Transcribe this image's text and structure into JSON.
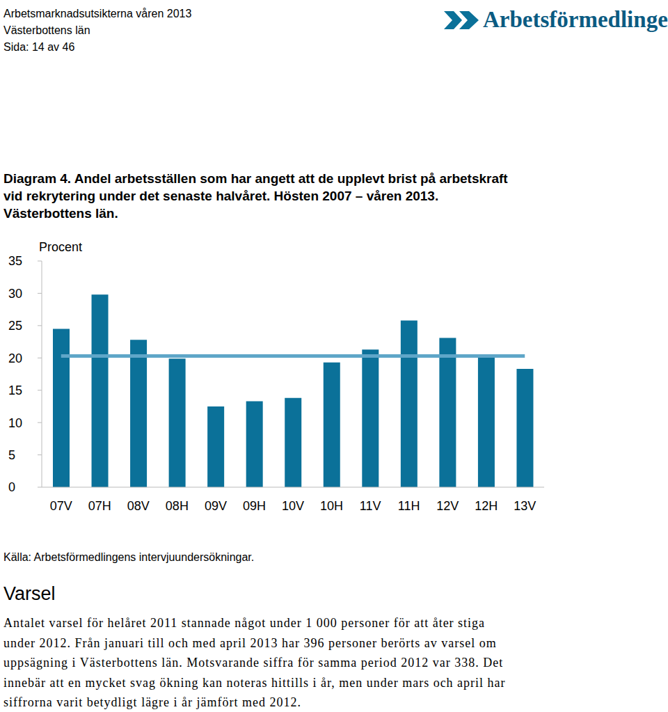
{
  "header": {
    "lines": [
      "Arbetsmarknadsutsikterna våren 2013",
      "Västerbottens län",
      "Sida: 14 av 46"
    ],
    "logo": "Arbetsförmedlingen"
  },
  "caption": [
    "Diagram 4. Andel arbetsställen som har angett att de upplevt brist på arbetskraft",
    "vid rekrytering under det senaste halvåret. Hösten 2007 – våren 2013.",
    "Västerbottens län."
  ],
  "chart_data": {
    "type": "bar",
    "y_label": "Procent",
    "categories": [
      "07V",
      "07H",
      "08V",
      "08H",
      "09V",
      "09H",
      "10V",
      "10H",
      "11V",
      "11H",
      "12V",
      "12H",
      "13V"
    ],
    "values": [
      24.5,
      29.8,
      22.8,
      19.9,
      12.5,
      13.3,
      13.8,
      19.3,
      21.3,
      25.8,
      23.1,
      20.3,
      18.3
    ],
    "color": "#0b7199",
    "reference_line": 20.3,
    "reference_color": "#5fa6c8",
    "ylim": [
      0,
      35
    ],
    "yticks": [
      0,
      5,
      10,
      15,
      20,
      25,
      30,
      35
    ],
    "grid": false
  },
  "source": "Källa: Arbetsförmedlingens intervjuundersökningar.",
  "section": {
    "heading": "Varsel",
    "lines": [
      "Antalet varsel för helåret 2011 stannade något under 1 000 personer för att åter stiga",
      "under 2012. Från januari till och med april 2013 har 396 personer berörts av varsel om",
      "uppsägning i Västerbottens län. Motsvarande siffra för samma period 2012 var 338. Det",
      "innebär att en mycket svag ökning kan noteras hittills i år, men under mars och april har",
      "siffrorna varit betydligt lägre i år jämfört med 2012."
    ]
  }
}
